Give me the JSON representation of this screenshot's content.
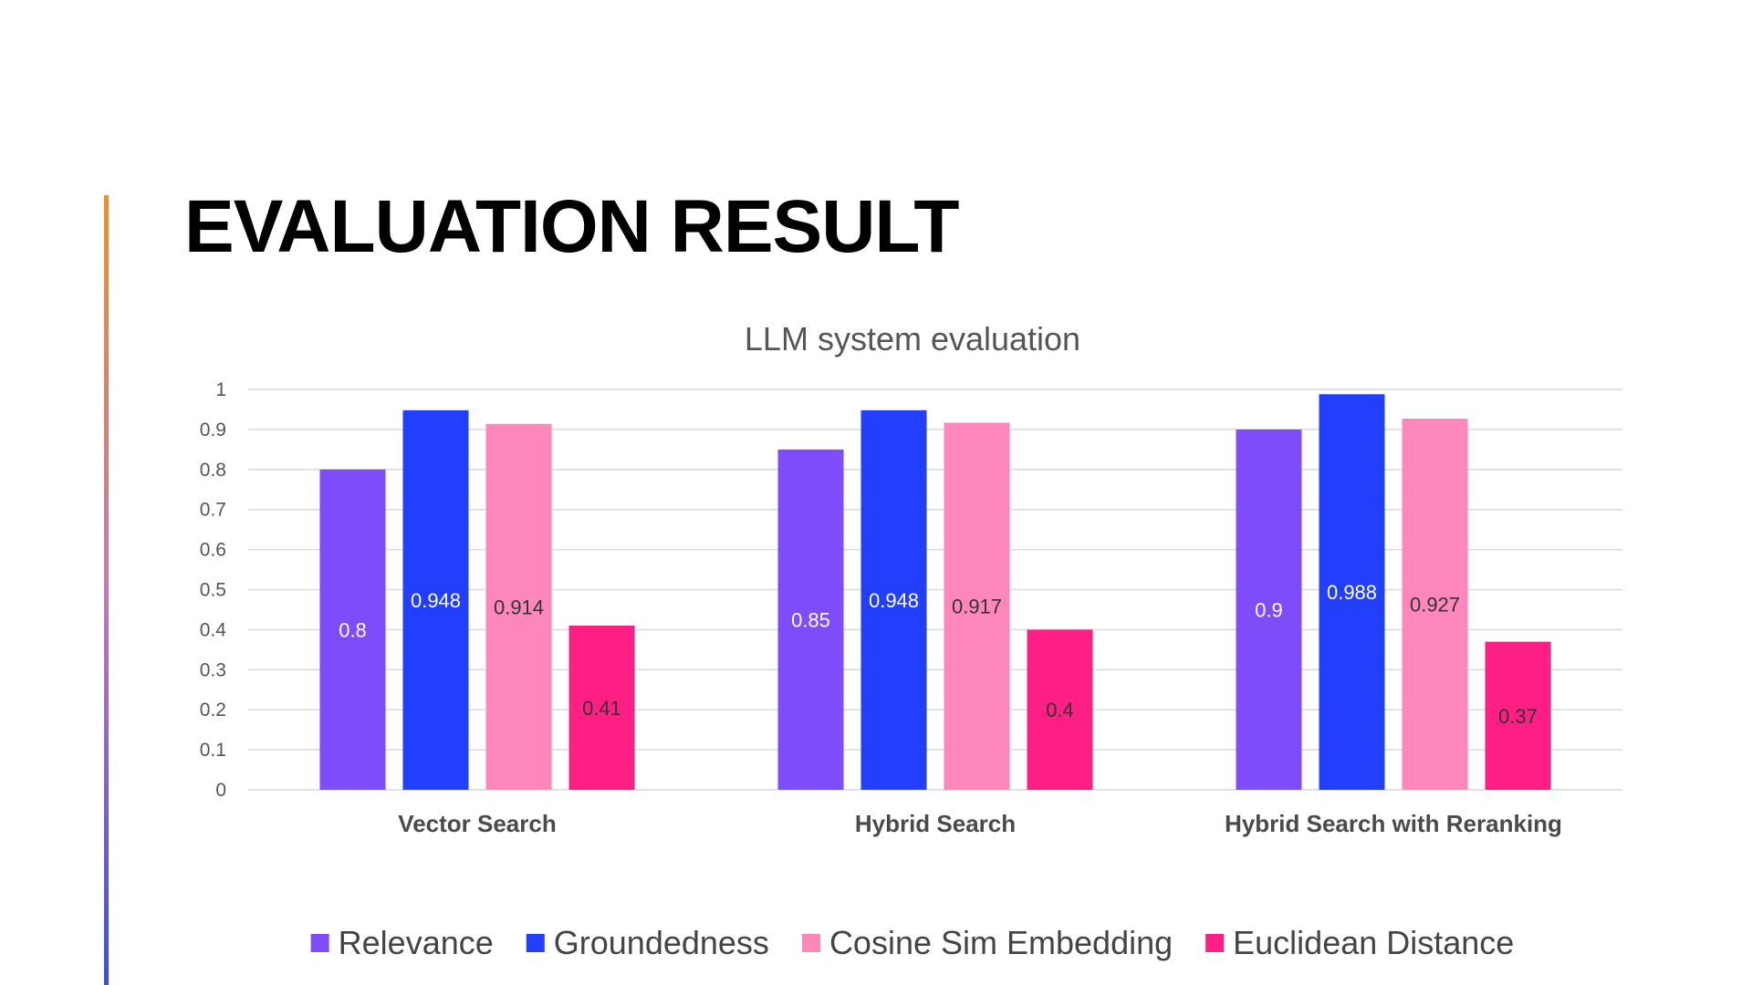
{
  "slide": {
    "title": "EVALUATION RESULT"
  },
  "chart_data": {
    "type": "bar",
    "title": "LLM system evaluation",
    "categories": [
      "Vector Search",
      "Hybrid Search",
      "Hybrid Search with Reranking"
    ],
    "series": [
      {
        "name": "Relevance",
        "color": "#7f4cf9",
        "label_color": "#ffffff",
        "values": [
          0.8,
          0.85,
          0.9
        ],
        "labels": [
          "0.8",
          "0.85",
          "0.9"
        ]
      },
      {
        "name": "Groundedness",
        "color": "#223ffe",
        "label_color": "#ffffff",
        "values": [
          0.948,
          0.948,
          0.988
        ],
        "labels": [
          "0.948",
          "0.948",
          "0.988"
        ]
      },
      {
        "name": "Cosine Sim Embedding",
        "color": "#fd87ba",
        "label_color": "#333333",
        "values": [
          0.914,
          0.917,
          0.927
        ],
        "labels": [
          "0.914",
          "0.917",
          "0.927"
        ]
      },
      {
        "name": "Euclidean Distance",
        "color": "#fd1f83",
        "label_color": "#333333",
        "values": [
          0.41,
          0.4,
          0.37
        ],
        "labels": [
          "0.41",
          "0.4",
          "0.37"
        ]
      }
    ],
    "ylim": [
      0,
      1
    ],
    "yticks": [
      "0",
      "0.1",
      "0.2",
      "0.3",
      "0.4",
      "0.5",
      "0.6",
      "0.7",
      "0.8",
      "0.9",
      "1"
    ],
    "xlabel": "",
    "ylabel": "",
    "grid": true,
    "legend_position": "bottom"
  }
}
